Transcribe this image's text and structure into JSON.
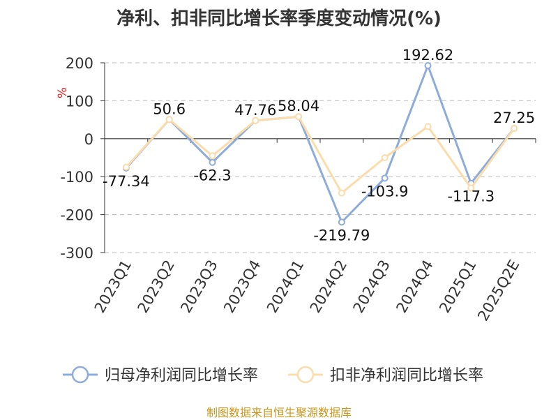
{
  "title": "净利、扣非同比增长率季度变动情况(%)",
  "source": "制图数据来自恒生聚源数据库",
  "colors": {
    "series1": "#8eacd9",
    "series2": "#fbdcab",
    "axis_unit": "#e02020",
    "source": "#c8961c",
    "grid": "#bbbbbb",
    "text": "#333333"
  },
  "chart_data": {
    "type": "line",
    "title": "净利、扣非同比增长率季度变动情况(%)",
    "ylabel": "%",
    "ylim": [
      -300,
      200
    ],
    "yticks": [
      200,
      100,
      0,
      -100,
      -200,
      -300
    ],
    "grid": true,
    "legend_position": "bottom",
    "categories": [
      "2023Q1",
      "2023Q2",
      "2023Q3",
      "2023Q4",
      "2024Q1",
      "2024Q2",
      "2024Q3",
      "2024Q4",
      "2025Q1",
      "2025Q2E"
    ],
    "series": [
      {
        "name": "归母净利润同比增长率",
        "values": [
          -77.34,
          50.6,
          -62.3,
          47.76,
          58.04,
          -219.79,
          -103.9,
          192.62,
          -117.3,
          27.25
        ]
      },
      {
        "name": "扣非净利润同比增长率",
        "values": [
          -75,
          50.6,
          -45,
          47.76,
          58.04,
          -143,
          -50,
          32,
          -130,
          27.25
        ]
      }
    ],
    "data_labels": [
      "-77.34",
      "50.6",
      "-62.3",
      "47.76",
      "58.04",
      "-219.79",
      "-103.9",
      "192.62",
      "-117.3",
      "27.25"
    ]
  }
}
